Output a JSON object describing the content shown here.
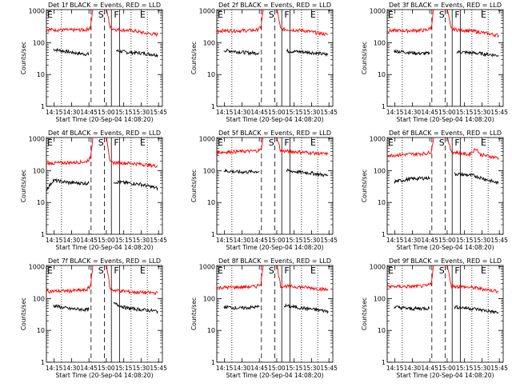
{
  "chart_data": {
    "type": "line",
    "layout": "3x3 grid",
    "shared": {
      "xlabel": "Start Time (20-Sep-04 14:08:20)",
      "ylabel": "Counts/sec",
      "x_ticks": [
        "14:15",
        "14:30",
        "14:45",
        "15:00",
        "15:15",
        "15:30",
        "15:45"
      ],
      "x_tick_values_min": [
        6.67,
        21.67,
        36.67,
        51.67,
        66.67,
        81.67,
        96.67
      ],
      "xlim_min": [
        0,
        100
      ],
      "y_ticks": [
        "1",
        "10",
        "100",
        "1000"
      ],
      "y_tick_values": [
        1,
        10,
        100,
        1000
      ],
      "ylim": [
        1,
        1100
      ],
      "yscale": "log",
      "legend_note": "BLACK = Events, RED = LLD",
      "series_colors": {
        "events": "#000000",
        "lld": "#ff0000"
      },
      "markers": [
        {
          "label": "E",
          "x_min": 0,
          "style": "dotted"
        },
        {
          "label": "",
          "x_min": 13,
          "style": "dotted"
        },
        {
          "label": "",
          "x_min": 38.5,
          "style": "dashed"
        },
        {
          "label": "S",
          "x_min": 44,
          "style": "none"
        },
        {
          "label": "",
          "x_min": 50,
          "style": "dashed"
        },
        {
          "label": "",
          "x_min": 56,
          "style": "solid"
        },
        {
          "label": "F",
          "x_min": 57.5,
          "style": "none"
        },
        {
          "label": "",
          "x_min": 63,
          "style": "solid"
        },
        {
          "label": "",
          "x_min": 73,
          "style": "dotted"
        },
        {
          "label": "E",
          "x_min": 80,
          "style": "none"
        },
        {
          "label": "",
          "x_min": 87,
          "style": "dotted"
        }
      ]
    },
    "panels": [
      {
        "title": "Det 1f BLACK = Events, RED = LLD",
        "series": [
          {
            "name": "Events",
            "color": "#000000",
            "segments": [
              [
                6,
                62
              ],
              [
                28,
                46
              ],
              [
                31,
                45
              ],
              [
                35,
                44
              ],
              [
                36.67,
                44
              ]
            ],
            "segments_b": [
              [
                60,
                56
              ],
              [
                70,
                50
              ],
              [
                80,
                48
              ],
              [
                90,
                44
              ],
              [
                96,
                41
              ]
            ]
          },
          {
            "name": "LLD",
            "color": "#ff0000",
            "segments": [
              [
                0,
                260
              ],
              [
                20,
                250
              ],
              [
                34,
                255
              ],
              [
                38,
                300
              ],
              [
                40,
                1100
              ]
            ],
            "segments_b": [
              [
                52,
                1100
              ],
              [
                55,
                300
              ],
              [
                60,
                260
              ],
              [
                75,
                240
              ],
              [
                85,
                200
              ],
              [
                96,
                180
              ]
            ]
          }
        ]
      },
      {
        "title": "Det 2f BLACK = Events, RED = LLD",
        "series": [
          {
            "name": "Events",
            "color": "#000000",
            "segments": [
              [
                6,
                58
              ],
              [
                28,
                48
              ],
              [
                36.67,
                48
              ]
            ],
            "segments_b": [
              [
                60,
                55
              ],
              [
                80,
                50
              ],
              [
                96,
                42
              ]
            ]
          },
          {
            "name": "LLD",
            "color": "#ff0000",
            "segments": [
              [
                0,
                240
              ],
              [
                20,
                240
              ],
              [
                34,
                250
              ],
              [
                38,
                300
              ],
              [
                40,
                1100
              ]
            ],
            "segments_b": [
              [
                52,
                1100
              ],
              [
                55,
                270
              ],
              [
                75,
                240
              ],
              [
                96,
                180
              ]
            ]
          }
        ]
      },
      {
        "title": "Det 3f BLACK = Events, RED = LLD",
        "series": [
          {
            "name": "Events",
            "color": "#000000",
            "segments": [
              [
                6,
                55
              ],
              [
                28,
                46
              ],
              [
                36.67,
                46
              ]
            ],
            "segments_b": [
              [
                60,
                52
              ],
              [
                80,
                46
              ],
              [
                96,
                40
              ]
            ]
          },
          {
            "name": "LLD",
            "color": "#ff0000",
            "segments": [
              [
                0,
                240
              ],
              [
                20,
                240
              ],
              [
                34,
                250
              ],
              [
                38,
                300
              ],
              [
                40,
                1100
              ]
            ],
            "segments_b": [
              [
                52,
                1100
              ],
              [
                55,
                270
              ],
              [
                75,
                230
              ],
              [
                96,
                170
              ]
            ]
          }
        ]
      },
      {
        "title": "Det 4f BLACK = Events, RED = LLD",
        "series": [
          {
            "name": "Events",
            "color": "#000000",
            "segments": [
              [
                0,
                25
              ],
              [
                6,
                50
              ],
              [
                20,
                42
              ],
              [
                36.67,
                40
              ]
            ],
            "segments_b": [
              [
                58,
                45
              ],
              [
                80,
                38
              ],
              [
                96,
                28
              ]
            ]
          },
          {
            "name": "LLD",
            "color": "#ff0000",
            "segments": [
              [
                0,
                170
              ],
              [
                20,
                180
              ],
              [
                34,
                190
              ],
              [
                38,
                250
              ],
              [
                40,
                1100
              ]
            ],
            "segments_b": [
              [
                52,
                1100
              ],
              [
                55,
                180
              ],
              [
                75,
                170
              ],
              [
                96,
                140
              ]
            ]
          }
        ]
      },
      {
        "title": "Det 5f BLACK = Events, RED = LLD",
        "series": [
          {
            "name": "Events",
            "color": "#000000",
            "segments": [
              [
                6,
                100
              ],
              [
                20,
                90
              ],
              [
                36.67,
                95
              ]
            ],
            "segments_b": [
              [
                60,
                100
              ],
              [
                80,
                85
              ],
              [
                96,
                70
              ]
            ]
          },
          {
            "name": "LLD",
            "color": "#ff0000",
            "segments": [
              [
                0,
                380
              ],
              [
                20,
                400
              ],
              [
                34,
                420
              ],
              [
                38,
                450
              ],
              [
                40,
                1100
              ]
            ],
            "segments_b": [
              [
                52,
                1100
              ],
              [
                55,
                420
              ],
              [
                75,
                380
              ],
              [
                96,
                330
              ]
            ]
          }
        ]
      },
      {
        "title": "Det 6f BLACK = Events, RED = LLD",
        "series": [
          {
            "name": "Events",
            "color": "#000000",
            "segments": [
              [
                6,
                45
              ],
              [
                20,
                55
              ],
              [
                36.67,
                60
              ]
            ],
            "segments_b": [
              [
                58,
                80
              ],
              [
                75,
                70
              ],
              [
                96,
                40
              ]
            ]
          },
          {
            "name": "LLD",
            "color": "#ff0000",
            "segments": [
              [
                0,
                300
              ],
              [
                20,
                330
              ],
              [
                34,
                350
              ],
              [
                38,
                400
              ],
              [
                40,
                1100
              ]
            ],
            "segments_b": [
              [
                52,
                1100
              ],
              [
                55,
                400
              ],
              [
                70,
                320
              ],
              [
                77,
                500
              ],
              [
                80,
                320
              ],
              [
                96,
                250
              ]
            ]
          }
        ]
      },
      {
        "title": "Det 7f BLACK = Events, RED = LLD",
        "series": [
          {
            "name": "Events",
            "color": "#000000",
            "segments": [
              [
                6,
                60
              ],
              [
                20,
                48
              ],
              [
                36.67,
                45
              ]
            ],
            "segments_b": [
              [
                58,
                70
              ],
              [
                70,
                50
              ],
              [
                96,
                40
              ]
            ]
          },
          {
            "name": "LLD",
            "color": "#ff0000",
            "segments": [
              [
                0,
                170
              ],
              [
                20,
                175
              ],
              [
                34,
                185
              ],
              [
                38,
                240
              ],
              [
                40,
                1100
              ]
            ],
            "segments_b": [
              [
                52,
                1100
              ],
              [
                55,
                190
              ],
              [
                75,
                160
              ],
              [
                96,
                150
              ]
            ]
          }
        ]
      },
      {
        "title": "Det 8f BLACK = Events, RED = LLD",
        "series": [
          {
            "name": "Events",
            "color": "#000000",
            "segments": [
              [
                6,
                55
              ],
              [
                20,
                50
              ],
              [
                36.67,
                55
              ]
            ],
            "segments_b": [
              [
                58,
                60
              ],
              [
                75,
                50
              ],
              [
                96,
                40
              ]
            ]
          },
          {
            "name": "LLD",
            "color": "#ff0000",
            "segments": [
              [
                0,
                220
              ],
              [
                20,
                230
              ],
              [
                34,
                240
              ],
              [
                38,
                300
              ],
              [
                40,
                1100
              ]
            ],
            "segments_b": [
              [
                52,
                1100
              ],
              [
                55,
                250
              ],
              [
                75,
                230
              ],
              [
                96,
                190
              ]
            ]
          }
        ]
      },
      {
        "title": "Det 9f BLACK = Events, RED = LLD",
        "series": [
          {
            "name": "Events",
            "color": "#000000",
            "segments": [
              [
                6,
                55
              ],
              [
                20,
                48
              ],
              [
                36.67,
                50
              ]
            ],
            "segments_b": [
              [
                58,
                55
              ],
              [
                75,
                48
              ],
              [
                96,
                36
              ]
            ]
          },
          {
            "name": "LLD",
            "color": "#ff0000",
            "segments": [
              [
                0,
                240
              ],
              [
                20,
                240
              ],
              [
                34,
                250
              ],
              [
                38,
                300
              ],
              [
                40,
                1100
              ]
            ],
            "segments_b": [
              [
                52,
                1100
              ],
              [
                55,
                250
              ],
              [
                75,
                220
              ],
              [
                96,
                170
              ]
            ]
          }
        ]
      }
    ]
  }
}
